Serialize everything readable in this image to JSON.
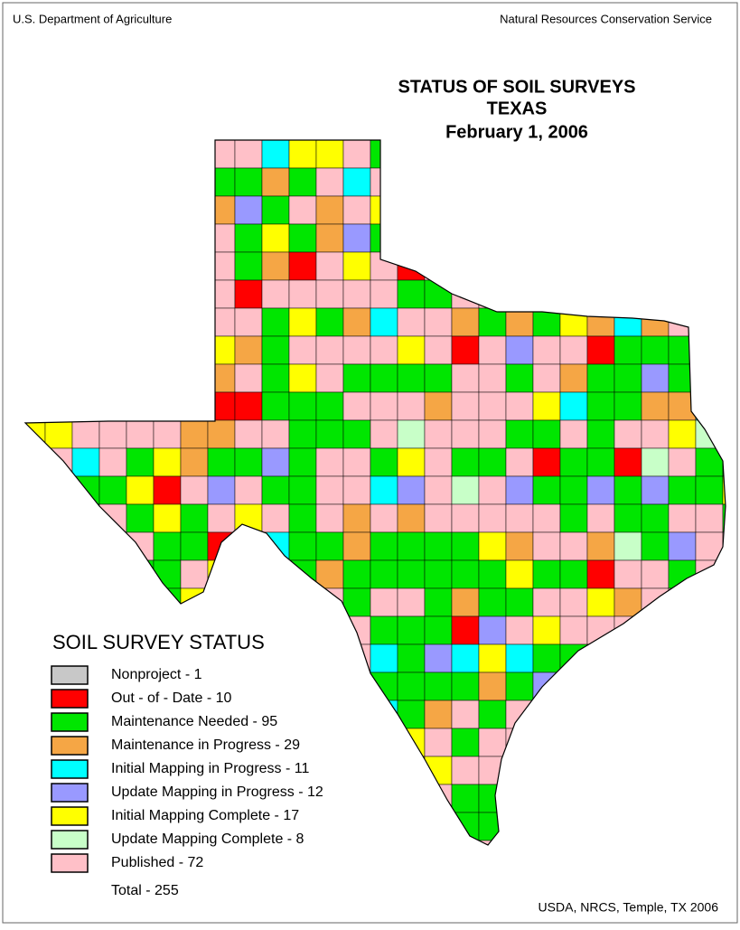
{
  "header": {
    "left": "U.S. Department of Agriculture",
    "right": "Natural Resources Conservation Service"
  },
  "title": [
    "STATUS OF SOIL SURVEYS",
    "TEXAS",
    "February 1, 2006"
  ],
  "legend": {
    "title": "SOIL SURVEY STATUS",
    "items": [
      {
        "label": "Nonproject - 1",
        "color": "#c8c8c8"
      },
      {
        "label": "Out - of - Date - 10",
        "color": "#ff0000"
      },
      {
        "label": "Maintenance Needed - 95",
        "color": "#00e600"
      },
      {
        "label": "Maintenance in Progress - 29",
        "color": "#f5a645"
      },
      {
        "label": "Initial Mapping in Progress - 11",
        "color": "#00ffff"
      },
      {
        "label": "Update Mapping in Progress - 12",
        "color": "#9999ff"
      },
      {
        "label": "Initial Mapping Complete - 17",
        "color": "#ffff00"
      },
      {
        "label": "Update Mapping Complete - 8",
        "color": "#c8ffc8"
      },
      {
        "label": "Published - 72",
        "color": "#ffc0c8"
      }
    ],
    "total": "Total - 255"
  },
  "footer": "USDA, NRCS, Temple, TX 2006"
}
